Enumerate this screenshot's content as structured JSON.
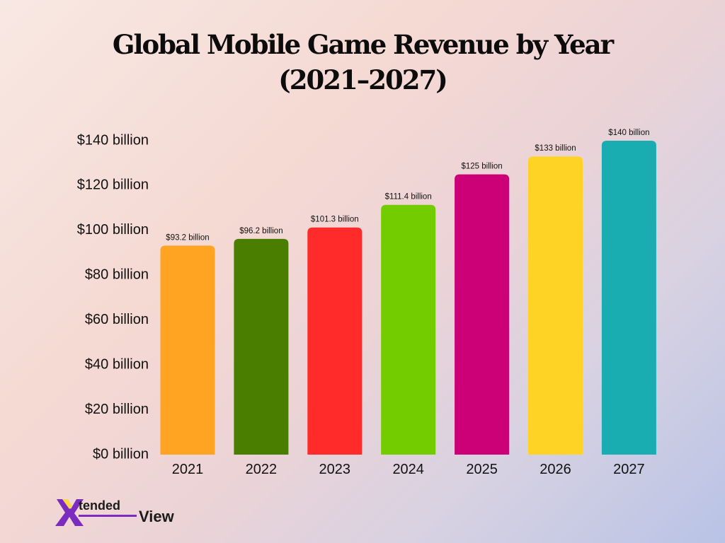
{
  "header": {
    "title_line1": "Global Mobile Game Revenue by Year",
    "title_line2": "(2021–2027)"
  },
  "logo": {
    "text_part1": "tended",
    "text_part2": "View",
    "colors": {
      "mark_primary": "#7b2cbf",
      "mark_secondary": "#ffd54a",
      "text": "#1b1b1b"
    }
  },
  "chart_data": {
    "type": "bar",
    "title": "Global Mobile Game Revenue by Year (2021–2027)",
    "xlabel": "",
    "ylabel": "",
    "categories": [
      "2021",
      "2022",
      "2023",
      "2024",
      "2025",
      "2026",
      "2027"
    ],
    "values": [
      93.2,
      96.2,
      101.3,
      111.4,
      125,
      133,
      140
    ],
    "value_labels": [
      "$93.2 billion",
      "$96.2 billion",
      "$101.3 billion",
      "$111.4 billion",
      "$125 billion",
      "$133 billion",
      "$140 billion"
    ],
    "colors": [
      "#ffa322",
      "#4a7e00",
      "#ff2a2a",
      "#73cc00",
      "#cc0077",
      "#ffd325",
      "#19adb2"
    ],
    "ylim": [
      0,
      140
    ],
    "yticks": [
      0,
      20,
      40,
      60,
      80,
      100,
      120,
      140
    ],
    "ytick_labels": [
      "$0 billion",
      "$20 billion",
      "$40 billion",
      "$60 billion",
      "$80 billion",
      "$100 billion",
      "$120 billion",
      "$140 billion"
    ],
    "grid": false,
    "legend": "none"
  }
}
